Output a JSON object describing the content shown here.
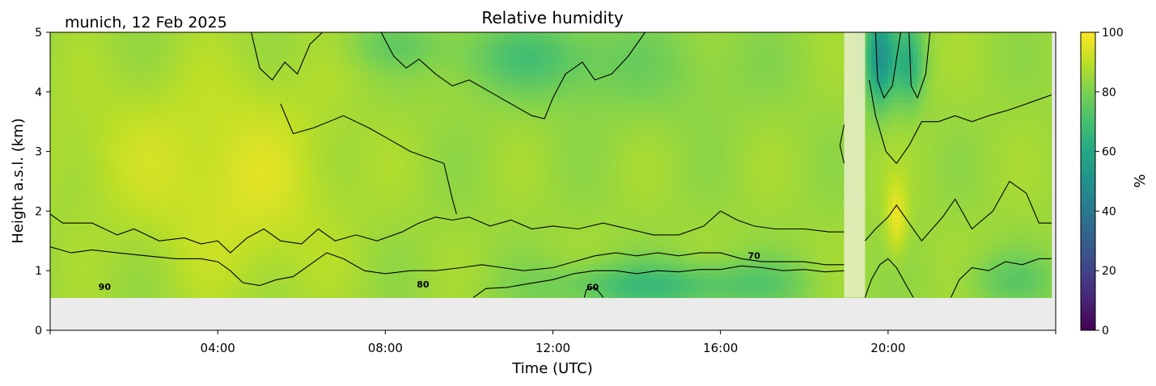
{
  "chart_data": {
    "type": "heatmap",
    "title": "Relative humidity",
    "corner_label": "munich, 12 Feb 2025",
    "xlabel": "Time (UTC)",
    "ylabel": "Height a.s.l. (km)",
    "xlim_hours": [
      0,
      24
    ],
    "ylim": [
      0,
      5
    ],
    "x_ticks": [
      {
        "value": 4,
        "label": "04:00"
      },
      {
        "value": 8,
        "label": "08:00"
      },
      {
        "value": 12,
        "label": "12:00"
      },
      {
        "value": 16,
        "label": "16:00"
      },
      {
        "value": 20,
        "label": "20:00"
      }
    ],
    "y_ticks": [
      {
        "value": 0,
        "label": "0"
      },
      {
        "value": 1,
        "label": "1"
      },
      {
        "value": 2,
        "label": "2"
      },
      {
        "value": 3,
        "label": "3"
      },
      {
        "value": 4,
        "label": "4"
      },
      {
        "value": 5,
        "label": "5"
      }
    ],
    "data_bottom_km": 0.55,
    "data_end_hour": 23.9,
    "missing_data_band_hours": [
      18.95,
      19.45
    ],
    "colorbar": {
      "label": "%",
      "range": [
        0,
        100
      ],
      "colormap": "viridis",
      "ticks": [
        "0",
        "20",
        "40",
        "60",
        "80",
        "100"
      ]
    },
    "contour_levels": [
      60,
      70,
      80,
      90
    ],
    "contour_labels": [
      {
        "text": "90",
        "x": 1.3,
        "y": 0.68
      },
      {
        "text": "80",
        "x": 8.9,
        "y": 0.72
      },
      {
        "text": "70",
        "x": 16.8,
        "y": 1.2
      },
      {
        "text": "60",
        "x": 12.95,
        "y": 0.67
      }
    ],
    "contours": {
      "c90": [
        [
          0,
          1.95
        ],
        [
          0.3,
          1.8
        ],
        [
          1,
          1.8
        ],
        [
          1.6,
          1.6
        ],
        [
          2,
          1.7
        ],
        [
          2.6,
          1.5
        ],
        [
          3.2,
          1.55
        ],
        [
          3.6,
          1.45
        ],
        [
          4,
          1.5
        ],
        [
          4.3,
          1.3
        ],
        [
          4.7,
          1.55
        ],
        [
          5.1,
          1.7
        ],
        [
          5.5,
          1.5
        ],
        [
          6,
          1.45
        ],
        [
          6.4,
          1.7
        ],
        [
          6.8,
          1.5
        ],
        [
          7.3,
          1.6
        ],
        [
          7.8,
          1.5
        ],
        [
          8.4,
          1.65
        ],
        [
          8.8,
          1.8
        ],
        [
          9.2,
          1.9
        ],
        [
          9.6,
          1.85
        ],
        [
          10,
          1.9
        ],
        [
          10.5,
          1.75
        ],
        [
          11,
          1.85
        ],
        [
          11.5,
          1.7
        ],
        [
          12,
          1.75
        ],
        [
          12.6,
          1.7
        ],
        [
          13.2,
          1.8
        ],
        [
          13.8,
          1.7
        ],
        [
          14.4,
          1.6
        ],
        [
          15,
          1.6
        ],
        [
          15.6,
          1.75
        ],
        [
          16,
          2.0
        ],
        [
          16.4,
          1.85
        ],
        [
          16.8,
          1.75
        ],
        [
          17.3,
          1.7
        ],
        [
          18,
          1.7
        ],
        [
          18.6,
          1.65
        ],
        [
          18.95,
          1.65
        ]
      ],
      "c80": [
        [
          0,
          1.4
        ],
        [
          0.5,
          1.3
        ],
        [
          1,
          1.35
        ],
        [
          1.6,
          1.3
        ],
        [
          2.3,
          1.25
        ],
        [
          3,
          1.2
        ],
        [
          3.6,
          1.2
        ],
        [
          4,
          1.15
        ],
        [
          4.3,
          1.0
        ],
        [
          4.6,
          0.8
        ],
        [
          5,
          0.75
        ],
        [
          5.4,
          0.85
        ],
        [
          5.8,
          0.9
        ],
        [
          6.2,
          1.1
        ],
        [
          6.6,
          1.3
        ],
        [
          7,
          1.2
        ],
        [
          7.5,
          1.0
        ],
        [
          8,
          0.95
        ],
        [
          8.6,
          1.0
        ],
        [
          9.2,
          1.0
        ],
        [
          9.8,
          1.05
        ],
        [
          10.3,
          1.1
        ],
        [
          10.8,
          1.05
        ],
        [
          11.3,
          1.0
        ],
        [
          12,
          1.05
        ],
        [
          12.5,
          1.15
        ],
        [
          13,
          1.25
        ],
        [
          13.5,
          1.3
        ],
        [
          14,
          1.25
        ],
        [
          14.5,
          1.3
        ],
        [
          15,
          1.25
        ],
        [
          15.5,
          1.3
        ],
        [
          16,
          1.3
        ],
        [
          16.5,
          1.2
        ],
        [
          17,
          1.15
        ],
        [
          17.5,
          1.15
        ],
        [
          18,
          1.15
        ],
        [
          18.5,
          1.1
        ],
        [
          18.95,
          1.1
        ]
      ],
      "c70": [
        [
          10.1,
          0.55
        ],
        [
          10.4,
          0.7
        ],
        [
          10.9,
          0.72
        ],
        [
          11.4,
          0.78
        ],
        [
          12,
          0.85
        ],
        [
          12.5,
          0.95
        ],
        [
          13,
          1.0
        ],
        [
          13.5,
          1.0
        ],
        [
          14,
          0.95
        ],
        [
          14.5,
          1.0
        ],
        [
          15,
          0.98
        ],
        [
          15.5,
          1.02
        ],
        [
          16,
          1.02
        ],
        [
          16.5,
          1.08
        ],
        [
          17,
          1.05
        ],
        [
          17.5,
          1.0
        ],
        [
          18,
          1.02
        ],
        [
          18.5,
          0.98
        ],
        [
          18.95,
          1.0
        ]
      ],
      "c60": [
        [
          12.75,
          0.55
        ],
        [
          12.8,
          0.68
        ],
        [
          13.0,
          0.72
        ],
        [
          13.15,
          0.6
        ],
        [
          13.2,
          0.55
        ]
      ],
      "c70_top": [
        [
          7.9,
          5
        ],
        [
          8.2,
          4.6
        ],
        [
          8.5,
          4.4
        ],
        [
          8.8,
          4.55
        ],
        [
          9.2,
          4.3
        ],
        [
          9.6,
          4.1
        ],
        [
          10,
          4.2
        ],
        [
          10.5,
          4.0
        ],
        [
          11,
          3.8
        ],
        [
          11.5,
          3.6
        ],
        [
          11.8,
          3.55
        ],
        [
          12,
          3.9
        ],
        [
          12.3,
          4.3
        ],
        [
          12.7,
          4.5
        ],
        [
          13,
          4.2
        ],
        [
          13.4,
          4.3
        ],
        [
          13.8,
          4.6
        ],
        [
          14.2,
          5
        ]
      ],
      "c80_top": [
        [
          4.8,
          5
        ],
        [
          5.0,
          4.4
        ],
        [
          5.3,
          4.2
        ],
        [
          5.6,
          4.5
        ],
        [
          5.9,
          4.3
        ],
        [
          6.2,
          4.8
        ],
        [
          6.5,
          5
        ]
      ],
      "c90_left": [
        [
          5.5,
          3.8
        ],
        [
          5.8,
          3.3
        ],
        [
          6.3,
          3.4
        ],
        [
          7,
          3.6
        ],
        [
          7.6,
          3.4
        ],
        [
          8.1,
          3.2
        ],
        [
          8.6,
          3.0
        ],
        [
          9,
          2.9
        ],
        [
          9.4,
          2.8
        ],
        [
          9.6,
          2.2
        ],
        [
          9.7,
          1.95
        ]
      ],
      "c90_r1": [
        [
          18.95,
          3.45
        ],
        [
          18.85,
          3.1
        ],
        [
          18.95,
          2.8
        ]
      ],
      "c80_r1": [
        [
          19.45,
          0.55
        ],
        [
          19.6,
          0.85
        ],
        [
          19.8,
          1.1
        ],
        [
          20.0,
          1.2
        ],
        [
          20.2,
          1.05
        ],
        [
          20.4,
          0.8
        ],
        [
          20.6,
          0.55
        ]
      ],
      "c90_r2": [
        [
          19.55,
          4.2
        ],
        [
          19.7,
          3.6
        ],
        [
          19.95,
          3.0
        ],
        [
          20.2,
          2.8
        ],
        [
          20.5,
          3.1
        ],
        [
          20.8,
          3.5
        ],
        [
          21.2,
          3.5
        ],
        [
          21.6,
          3.6
        ],
        [
          22,
          3.5
        ],
        [
          22.4,
          3.6
        ],
        [
          22.9,
          3.7
        ],
        [
          23.3,
          3.8
        ],
        [
          23.7,
          3.9
        ],
        [
          23.9,
          3.95
        ]
      ],
      "c80_r2": [
        [
          19.45,
          1.5
        ],
        [
          19.7,
          1.7
        ],
        [
          20.0,
          1.9
        ],
        [
          20.2,
          2.1
        ],
        [
          20.5,
          1.8
        ],
        [
          20.8,
          1.5
        ],
        [
          21.3,
          1.9
        ],
        [
          21.6,
          2.2
        ],
        [
          22,
          1.7
        ],
        [
          22.5,
          2.0
        ],
        [
          22.9,
          2.5
        ],
        [
          23.3,
          2.3
        ],
        [
          23.6,
          1.8
        ],
        [
          23.9,
          1.8
        ]
      ],
      "c70_r2": [
        [
          21.5,
          0.55
        ],
        [
          21.7,
          0.85
        ],
        [
          22,
          1.05
        ],
        [
          22.4,
          1.0
        ],
        [
          22.8,
          1.15
        ],
        [
          23.2,
          1.1
        ],
        [
          23.6,
          1.2
        ],
        [
          23.9,
          1.2
        ]
      ],
      "c60_r": [
        [
          19.7,
          5
        ],
        [
          19.75,
          4.2
        ],
        [
          19.9,
          3.9
        ],
        [
          20.1,
          4.1
        ],
        [
          20.3,
          5
        ]
      ],
      "c60_r_b": [
        [
          20.5,
          5
        ],
        [
          20.55,
          4.1
        ],
        [
          20.7,
          3.9
        ],
        [
          20.9,
          4.3
        ],
        [
          21.0,
          5
        ]
      ]
    }
  }
}
